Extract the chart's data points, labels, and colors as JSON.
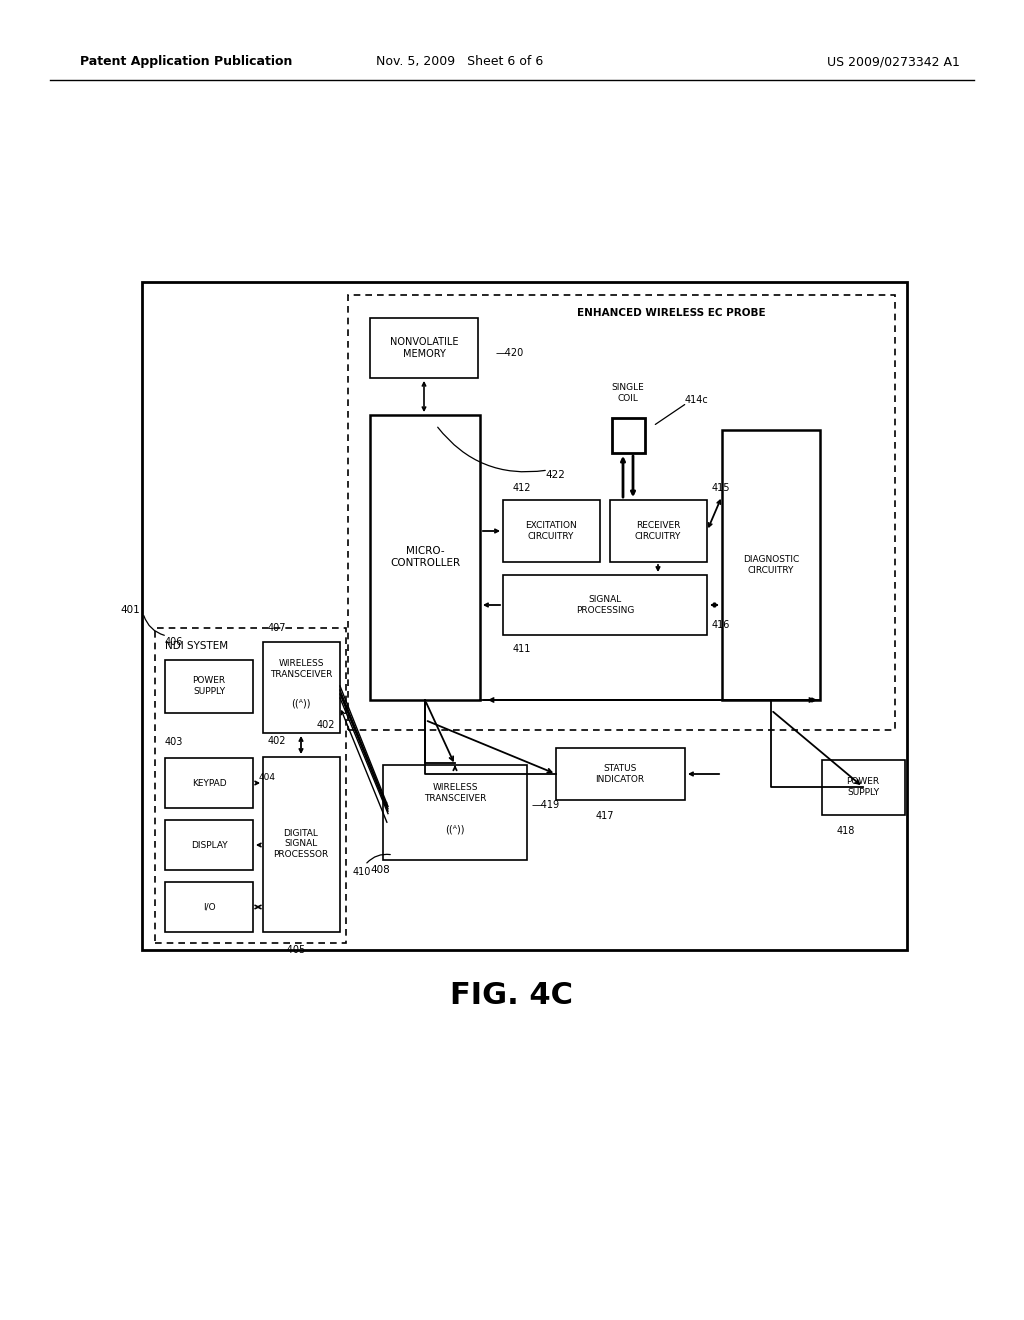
{
  "bg_color": "#ffffff",
  "page_header_left": "Patent Application Publication",
  "page_header_mid": "Nov. 5, 2009   Sheet 6 of 6",
  "page_header_right": "US 2009/0273342 A1",
  "figure_caption": "FIG. 4C"
}
